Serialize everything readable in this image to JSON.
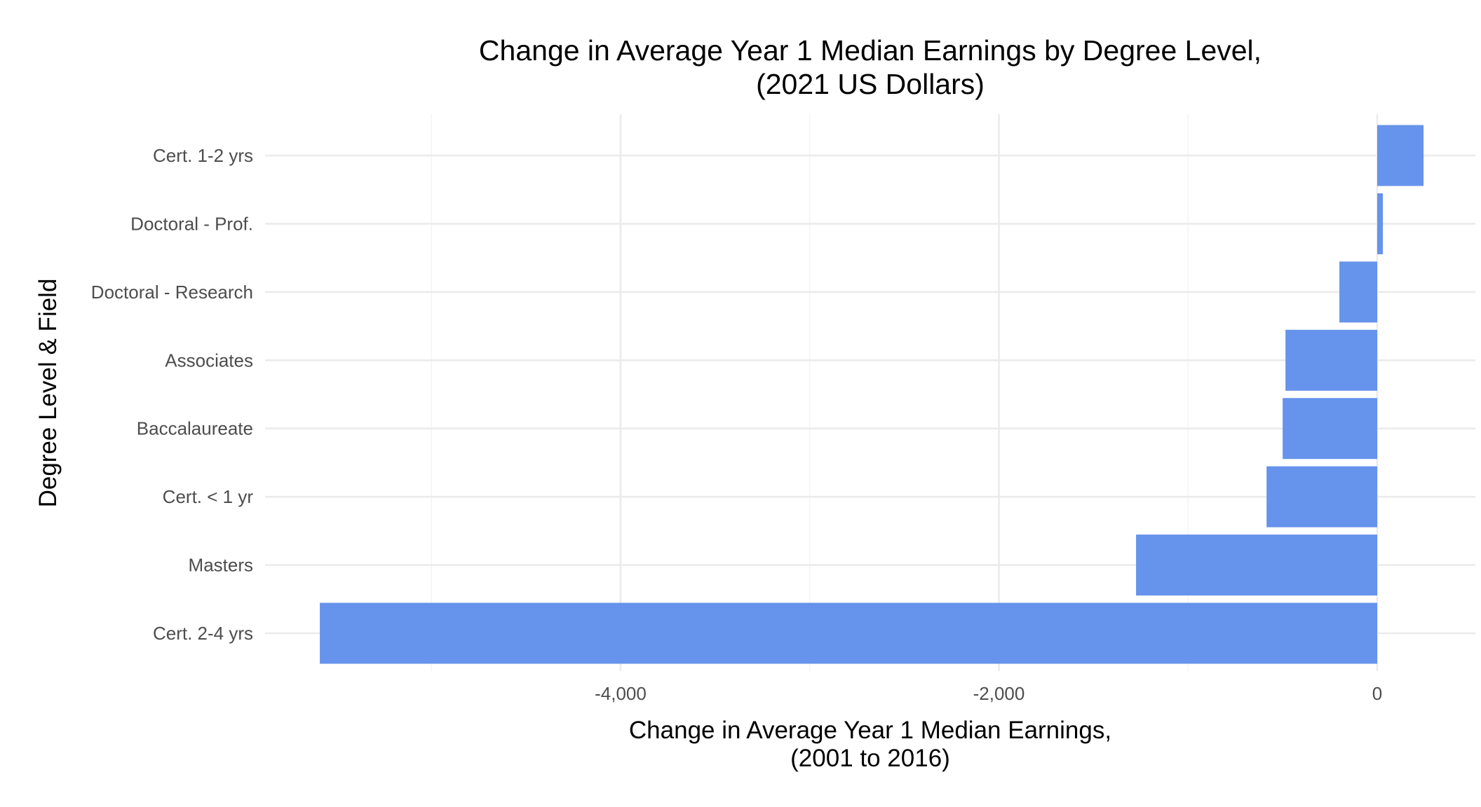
{
  "chart_data": {
    "type": "bar",
    "orientation": "horizontal",
    "title": "Change in Average Year 1 Median Earnings by Degree Level,",
    "subtitle": "(2021 US Dollars)",
    "xlabel": "Change in Average Year 1 Median Earnings,",
    "xlabel_line2": "(2001 to 2016)",
    "ylabel": "Degree Level & Field",
    "categories": [
      "Cert. 1-2 yrs",
      "Doctoral - Prof.",
      "Doctoral - Research",
      "Associates",
      "Baccalaureate",
      "Cert. < 1 yr",
      "Masters",
      "Cert. 2-4 yrs"
    ],
    "values": [
      245,
      30,
      -200,
      -485,
      -500,
      -585,
      -1275,
      -5590
    ],
    "xlim": [
      -5590,
      550
    ],
    "xticks": [
      -4000,
      -2000,
      0
    ],
    "xtick_labels": [
      "-4,000",
      "-2,000",
      "0"
    ],
    "grid": true,
    "bar_color": "#6693EB",
    "gridline_color": "#EBEBEB",
    "legend": "none"
  }
}
